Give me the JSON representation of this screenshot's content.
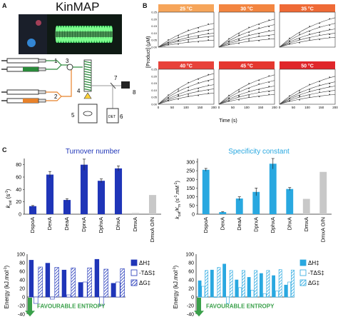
{
  "panels": {
    "a": "A",
    "b": "B",
    "c": "C"
  },
  "kinmap": {
    "title": "KinMAP",
    "components": [
      "1",
      "2",
      "3",
      "4",
      "5",
      "6",
      "7",
      "8"
    ],
    "detector_label": "DET"
  },
  "panel_b": {
    "ylabel": "[Product] (µM)",
    "xlabel": "Time (s)",
    "temperatures": [
      "25 °C",
      "30 °C",
      "35 °C",
      "40 °C",
      "45 °C",
      "50 °C"
    ],
    "temp_colors": [
      "#f6a55a",
      "#f38540",
      "#ef6a36",
      "#e8423a",
      "#e5372f",
      "#e0262a"
    ],
    "yticks": [
      "0.00",
      "0.05",
      "0.10",
      "0.15",
      "0.20",
      "0.25"
    ],
    "xticks": [
      "0",
      "50",
      "100",
      "150",
      "200"
    ]
  },
  "turnover": {
    "title": "Turnover number",
    "title_color": "#1f35b8",
    "ylabel_main": "k",
    "ylabel_sub": "cat",
    "ylabel_unit": " (s",
    "ylabel_exp": "-1",
    "ylabel_close": ")",
    "yticks": [
      "0",
      "20",
      "40",
      "60",
      "80"
    ],
    "categories": [
      "DspoA",
      "DexA",
      "DeaA",
      "DprxA",
      "DphxA",
      "DhxA",
      "DmxA",
      "DmxA O/N"
    ]
  },
  "specificity": {
    "title": "Specificity constant",
    "title_color": "#29a8e0",
    "ylabel_main": "k",
    "ylabel_sub": "cat",
    "ylabel_mid": "/K",
    "ylabel_sub2": "m",
    "ylabel_unit": " (s",
    "ylabel_exp": "-1",
    "ylabel_unit2": ".mM",
    "ylabel_exp2": "-1",
    "ylabel_close": ")",
    "yticks": [
      "0",
      "50",
      "100",
      "150",
      "200",
      "250",
      "300"
    ],
    "categories": [
      "DspoA",
      "DexA",
      "DeaA",
      "DprxA",
      "DphxA",
      "DhxA",
      "DmxA",
      "DmxA O/N"
    ]
  },
  "energy": {
    "ylabel": "Energy (kJ.mol",
    "ylabel_exp": "-1",
    "ylabel_close": ")",
    "yticks": [
      "100",
      "80",
      "60",
      "40",
      "20",
      "0",
      "-20",
      "-40"
    ],
    "favourable": "FAVOURABLE ENTROPY",
    "legend": [
      "ΔH‡",
      "-TΔS‡",
      "ΔG‡"
    ],
    "left_color": "#1f35b8",
    "right_color": "#29a8e0"
  },
  "chart_data": [
    {
      "type": "line",
      "panel": "B",
      "xlabel": "Time (s)",
      "ylabel": "[Product] (µM)",
      "xlim": [
        0,
        200
      ],
      "ylim": [
        0,
        0.25
      ],
      "facets": [
        "25 °C",
        "30 °C",
        "35 °C",
        "40 °C",
        "45 °C",
        "50 °C"
      ],
      "series_endpoints": [
        [
          0.17,
          0.13,
          0.1,
          0.08,
          0.05
        ],
        [
          0.2,
          0.16,
          0.12,
          0.09,
          0.06
        ],
        [
          0.21,
          0.17,
          0.13,
          0.1,
          0.07
        ],
        [
          0.22,
          0.18,
          0.14,
          0.11,
          0.08
        ],
        [
          0.21,
          0.17,
          0.13,
          0.1,
          0.07
        ],
        [
          0.2,
          0.16,
          0.13,
          0.1,
          0.07
        ]
      ]
    },
    {
      "type": "bar",
      "panel": "C-turnover",
      "categories": [
        "DspoA",
        "DexA",
        "DeaA",
        "DprxA",
        "DphxA",
        "DhxA",
        "DmxA",
        "DmxA O/N"
      ],
      "values": [
        13,
        64,
        23,
        80,
        54,
        74,
        2,
        31
      ],
      "errors": [
        1,
        5,
        2,
        9,
        3,
        4,
        0,
        0
      ],
      "colors": [
        "#1f35b8",
        "#1f35b8",
        "#1f35b8",
        "#1f35b8",
        "#1f35b8",
        "#1f35b8",
        "#c8c8c8",
        "#c8c8c8"
      ],
      "ylim": [
        0,
        90
      ]
    },
    {
      "type": "bar",
      "panel": "C-specificity",
      "categories": [
        "DspoA",
        "DexA",
        "DeaA",
        "DprxA",
        "DphxA",
        "DhxA",
        "DmxA",
        "DmxA O/N"
      ],
      "values": [
        255,
        12,
        90,
        128,
        290,
        145,
        88,
        243
      ],
      "errors": [
        8,
        2,
        10,
        22,
        30,
        8,
        0,
        0
      ],
      "colors": [
        "#29a8e0",
        "#29a8e0",
        "#29a8e0",
        "#29a8e0",
        "#29a8e0",
        "#29a8e0",
        "#c8c8c8",
        "#c8c8c8"
      ],
      "ylim": [
        0,
        320
      ]
    },
    {
      "type": "bar",
      "panel": "C-energy-left",
      "series": [
        {
          "name": "ΔH‡",
          "values": [
            86,
            79,
            63,
            34,
            88,
            32
          ]
        },
        {
          "name": "-TΔS‡",
          "values": [
            -15,
            -5,
            5,
            35,
            -20,
            35
          ]
        },
        {
          "name": "ΔG‡",
          "values": [
            70,
            69,
            68,
            68,
            65,
            66
          ]
        }
      ],
      "ylim": [
        -40,
        100
      ]
    },
    {
      "type": "bar",
      "panel": "C-energy-right",
      "series": [
        {
          "name": "ΔH‡",
          "values": [
            38,
            63,
            77,
            40,
            46,
            55,
            50,
            28
          ]
        },
        {
          "name": "-TΔS‡",
          "values": [
            25,
            0,
            -15,
            22,
            16,
            8,
            14,
            35
          ]
        },
        {
          "name": "ΔG‡",
          "values": [
            62,
            69,
            62,
            62,
            62,
            62,
            64,
            63
          ]
        }
      ],
      "ylim": [
        -40,
        100
      ]
    }
  ]
}
